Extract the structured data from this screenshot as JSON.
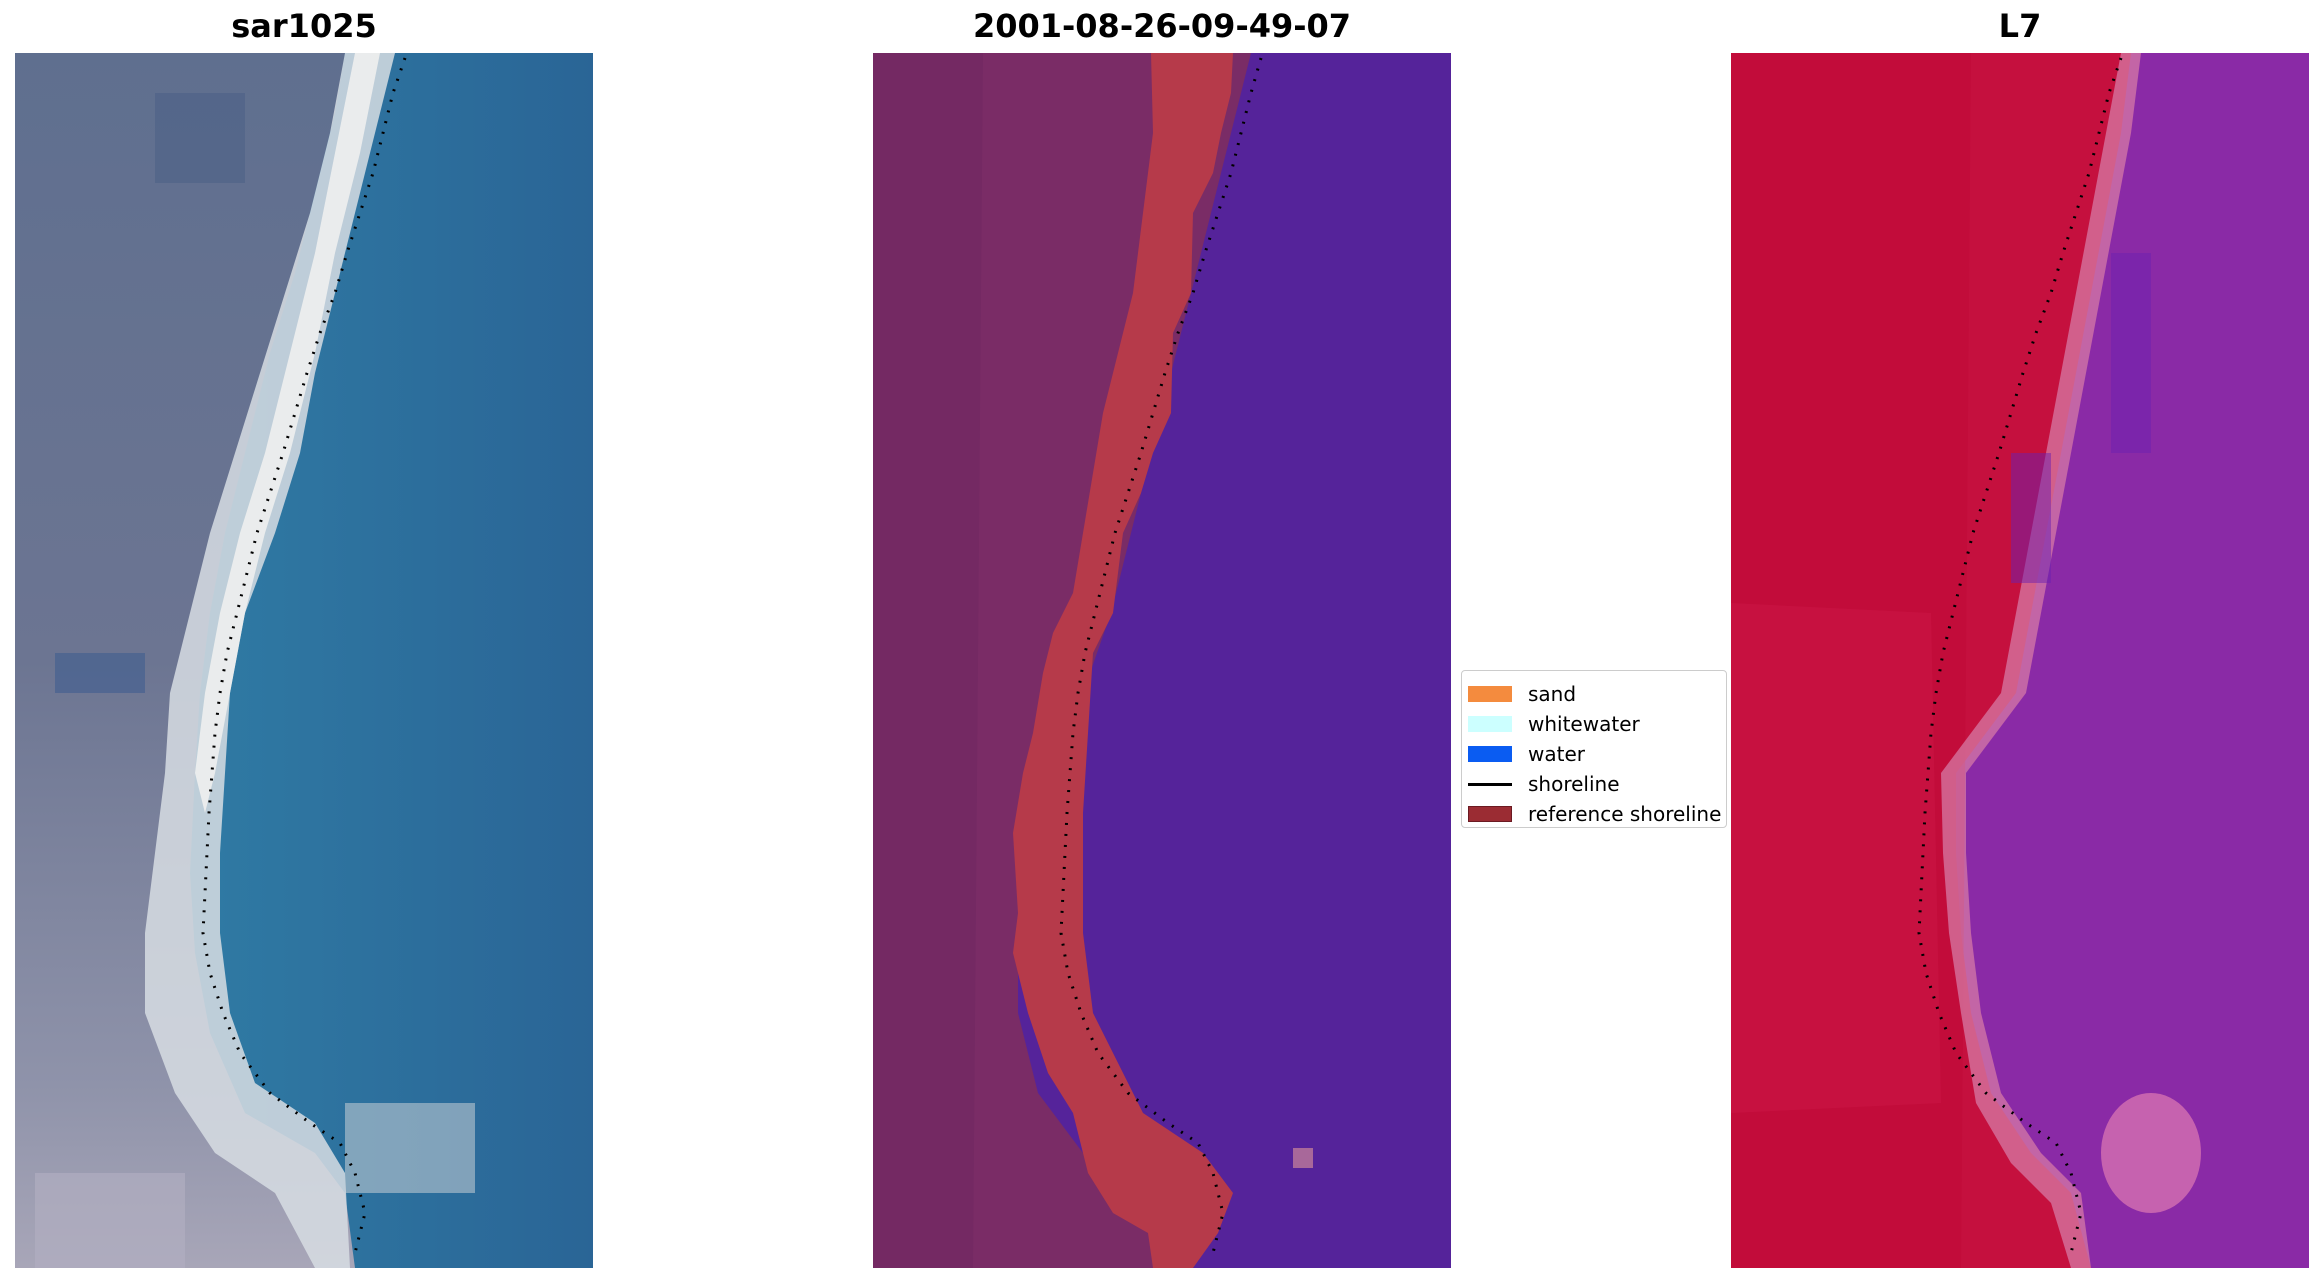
{
  "panels": {
    "left": {
      "title": "sar1025"
    },
    "middle": {
      "title": "2001-08-26-09-49-07"
    },
    "right": {
      "title": "L7"
    }
  },
  "legend": {
    "items": [
      {
        "label": "sand",
        "color": "#f48b3e"
      },
      {
        "label": "whitewater",
        "color": "#ccffff"
      },
      {
        "label": "water",
        "color": "#0a5cf2"
      },
      {
        "label": "shoreline",
        "color": "#000000"
      },
      {
        "label": "reference shoreline",
        "color": "#9b2c33"
      }
    ]
  },
  "colors": {
    "rgb_water": "#2f6f9e",
    "rgb_land": "#6b7590",
    "class_land": "#7a2c66",
    "class_sand": "#b63a4a",
    "class_water": "#55239a",
    "ndwi_land": "#c5103e",
    "ndwi_water": "#8a2aa6"
  }
}
